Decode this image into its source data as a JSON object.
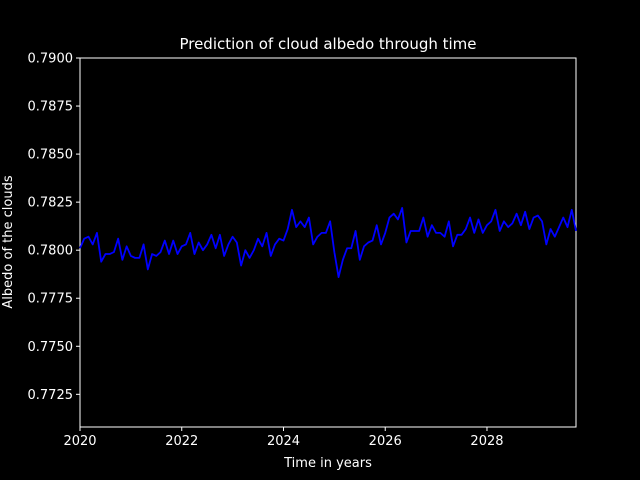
{
  "chart_data": {
    "type": "line",
    "title": "Prediction of cloud albedo through time",
    "xlabel": "Time in years",
    "ylabel": "Albedo of the clouds",
    "xlim": [
      2020,
      2029.75
    ],
    "ylim": [
      0.7708,
      0.79
    ],
    "xticks": [
      2020,
      2022,
      2024,
      2026,
      2028
    ],
    "xtick_labels": [
      "2020",
      "2022",
      "2024",
      "2026",
      "2028"
    ],
    "yticks": [
      0.7725,
      0.775,
      0.7775,
      0.78,
      0.7825,
      0.785,
      0.7875,
      0.79
    ],
    "ytick_labels": [
      "0.7725",
      "0.7750",
      "0.7775",
      "0.7800",
      "0.7825",
      "0.7850",
      "0.7875",
      "0.7900"
    ],
    "grid": false,
    "legend": "none",
    "background_color": "#000000",
    "text_color": "#ffffff",
    "series": [
      {
        "color": "#0000ff",
        "x": [
          2020.0,
          2020.083,
          2020.167,
          2020.25,
          2020.333,
          2020.417,
          2020.5,
          2020.583,
          2020.667,
          2020.75,
          2020.833,
          2020.917,
          2021.0,
          2021.083,
          2021.167,
          2021.25,
          2021.333,
          2021.417,
          2021.5,
          2021.583,
          2021.667,
          2021.75,
          2021.833,
          2021.917,
          2022.0,
          2022.083,
          2022.167,
          2022.25,
          2022.333,
          2022.417,
          2022.5,
          2022.583,
          2022.667,
          2022.75,
          2022.833,
          2022.917,
          2023.0,
          2023.083,
          2023.167,
          2023.25,
          2023.333,
          2023.417,
          2023.5,
          2023.583,
          2023.667,
          2023.75,
          2023.833,
          2023.917,
          2024.0,
          2024.083,
          2024.167,
          2024.25,
          2024.333,
          2024.417,
          2024.5,
          2024.583,
          2024.667,
          2024.75,
          2024.833,
          2024.917,
          2025.0,
          2025.083,
          2025.167,
          2025.25,
          2025.333,
          2025.417,
          2025.5,
          2025.583,
          2025.667,
          2025.75,
          2025.833,
          2025.917,
          2026.0,
          2026.083,
          2026.167,
          2026.25,
          2026.333,
          2026.417,
          2026.5,
          2026.583,
          2026.667,
          2026.75,
          2026.833,
          2026.917,
          2027.0,
          2027.083,
          2027.167,
          2027.25,
          2027.333,
          2027.417,
          2027.5,
          2027.583,
          2027.667,
          2027.75,
          2027.833,
          2027.917,
          2028.0,
          2028.083,
          2028.167,
          2028.25,
          2028.333,
          2028.417,
          2028.5,
          2028.583,
          2028.667,
          2028.75,
          2028.833,
          2028.917,
          2029.0,
          2029.083,
          2029.167,
          2029.25,
          2029.333,
          2029.417,
          2029.5,
          2029.583,
          2029.667,
          2029.75
        ],
        "values": [
          0.7801,
          0.7806,
          0.7807,
          0.7803,
          0.7809,
          0.7794,
          0.7798,
          0.7798,
          0.7799,
          0.7806,
          0.7795,
          0.7802,
          0.7797,
          0.7796,
          0.7796,
          0.7803,
          0.779,
          0.7798,
          0.7797,
          0.7799,
          0.7805,
          0.7798,
          0.7805,
          0.7798,
          0.7802,
          0.7803,
          0.7809,
          0.7798,
          0.7804,
          0.78,
          0.7803,
          0.7808,
          0.7801,
          0.7808,
          0.7797,
          0.7803,
          0.7807,
          0.7804,
          0.7792,
          0.78,
          0.7796,
          0.78,
          0.7806,
          0.7802,
          0.7809,
          0.7797,
          0.7803,
          0.7806,
          0.7805,
          0.7811,
          0.7821,
          0.7812,
          0.7815,
          0.7812,
          0.7817,
          0.7803,
          0.7807,
          0.7809,
          0.7809,
          0.7815,
          0.7799,
          0.7786,
          0.7795,
          0.7801,
          0.7801,
          0.781,
          0.7795,
          0.7802,
          0.7804,
          0.7805,
          0.7813,
          0.7803,
          0.7809,
          0.7817,
          0.7819,
          0.7816,
          0.7822,
          0.7804,
          0.781,
          0.781,
          0.781,
          0.7817,
          0.7807,
          0.7813,
          0.7809,
          0.7809,
          0.7807,
          0.7815,
          0.7802,
          0.7808,
          0.7808,
          0.7811,
          0.7817,
          0.7809,
          0.7816,
          0.7809,
          0.7813,
          0.7815,
          0.7821,
          0.781,
          0.7815,
          0.7812,
          0.7814,
          0.7819,
          0.7813,
          0.782,
          0.7811,
          0.7817,
          0.7818,
          0.7815,
          0.7803,
          0.7811,
          0.7807,
          0.7812,
          0.7817,
          0.7812,
          0.7821,
          0.781
        ]
      }
    ]
  }
}
